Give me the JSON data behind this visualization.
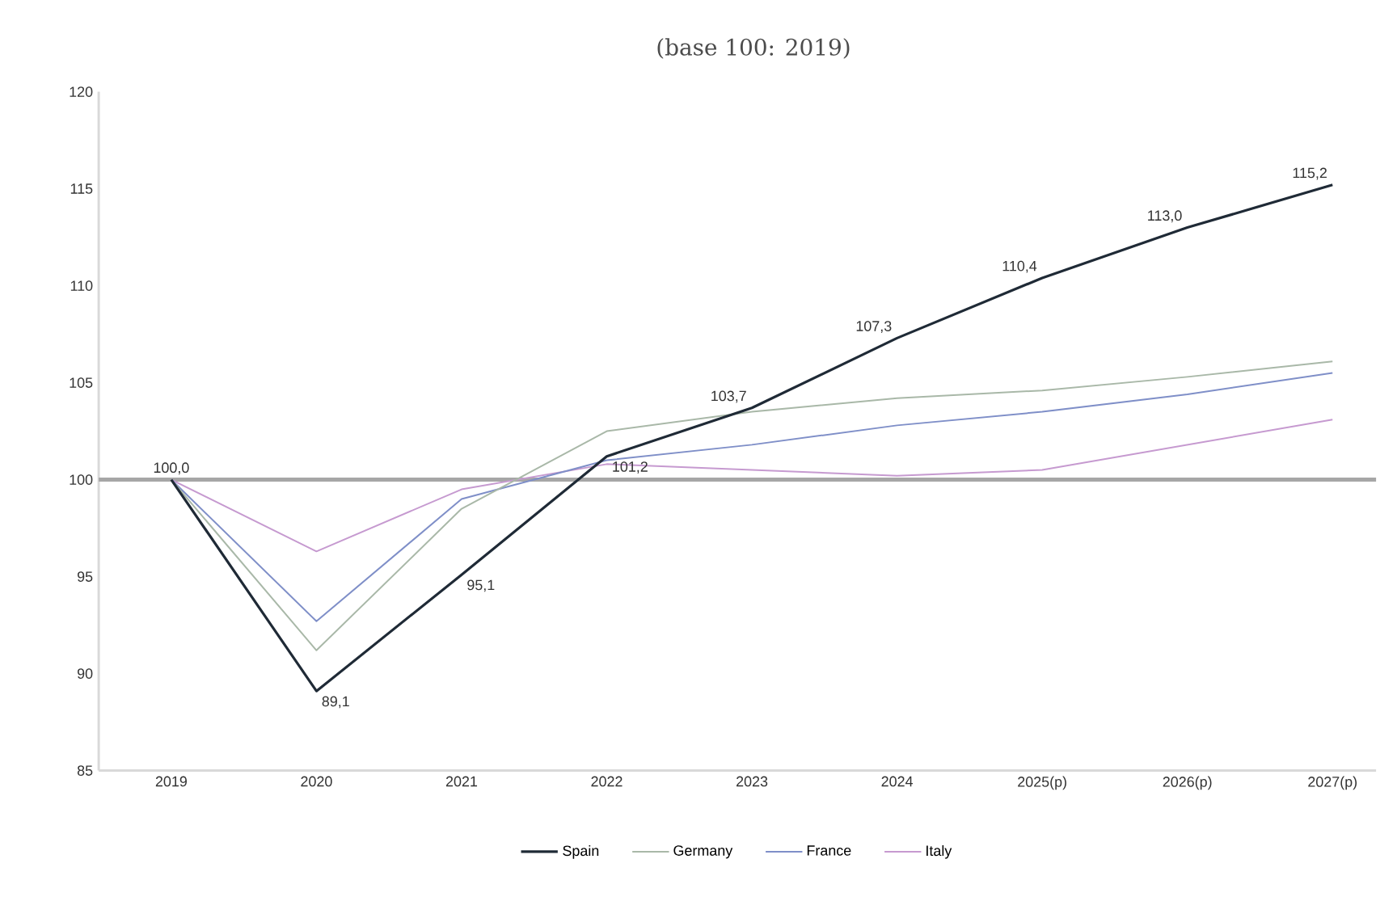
{
  "chart_data": {
    "type": "line",
    "title": "(base 100: 2019)",
    "categories": [
      "2019",
      "2020",
      "2021",
      "2022",
      "2023",
      "2024",
      "2025(p)",
      "2026(p)",
      "2027(p)"
    ],
    "series": [
      {
        "name": "Spain",
        "color": "#1f2a36",
        "values": [
          100.0,
          89.1,
          95.1,
          101.2,
          103.7,
          107.3,
          110.4,
          113.0,
          115.2
        ],
        "value_labels": [
          "100,0",
          "89,1",
          "95,1",
          "101,2",
          "103,7",
          "107,3",
          "110,4",
          "113,0",
          "115,2"
        ]
      },
      {
        "name": "Germany",
        "color": "#a9b8a8",
        "values": [
          100,
          91.2,
          98.5,
          102.5,
          103.5,
          104.2,
          104.6,
          105.3,
          106.1
        ]
      },
      {
        "name": "France",
        "color": "#7f8fc8",
        "values": [
          100,
          92.7,
          99.0,
          101.0,
          101.8,
          102.8,
          103.5,
          104.4,
          105.5
        ]
      },
      {
        "name": "Italy",
        "color": "#c69ad0",
        "values": [
          100,
          96.3,
          99.5,
          100.8,
          100.5,
          100.2,
          100.5,
          101.8,
          103.1
        ]
      }
    ],
    "ylim": [
      85,
      120
    ],
    "yticks": [
      85,
      90,
      95,
      100,
      105,
      110,
      115,
      120
    ],
    "ref_lines": [
      {
        "axis": "y",
        "value": 100,
        "color": "#a6a6a6"
      }
    ],
    "grid": false,
    "legend": "bottom"
  }
}
